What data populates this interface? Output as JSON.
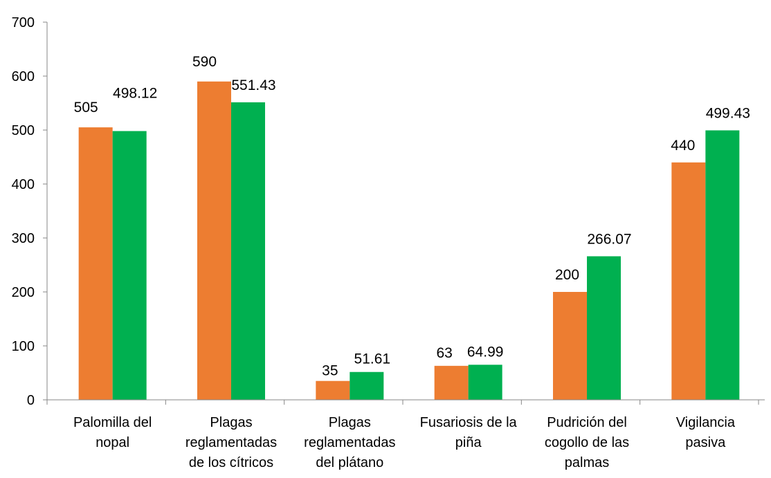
{
  "chart_data": {
    "type": "bar",
    "title": "",
    "xlabel": "",
    "ylabel": "",
    "ylim": [
      0,
      700
    ],
    "yticks": [
      0,
      100,
      200,
      300,
      400,
      500,
      600,
      700
    ],
    "grid": false,
    "legend": "none",
    "categories": [
      [
        "Palomilla del",
        "nopal"
      ],
      [
        "Plagas",
        "reglamentadas",
        "de los cítricos"
      ],
      [
        "Plagas",
        "reglamentadas",
        "del plátano"
      ],
      [
        "Fusariosis de la",
        "piña"
      ],
      [
        "Pudrición del",
        "cogollo de las",
        "palmas"
      ],
      [
        "Vigilancia",
        "pasiva"
      ]
    ],
    "series": [
      {
        "color": "#ED7D31",
        "values": [
          505,
          590,
          35,
          63,
          200,
          440
        ],
        "labels": [
          "505",
          "590",
          "35",
          "63",
          "200",
          "440"
        ]
      },
      {
        "color": "#00B050",
        "values": [
          498.12,
          551.43,
          51.61,
          64.99,
          266.07,
          499.43
        ],
        "labels": [
          "498.12",
          "551.43",
          "51.61",
          "64.99",
          "266.07",
          "499.43"
        ]
      }
    ]
  }
}
